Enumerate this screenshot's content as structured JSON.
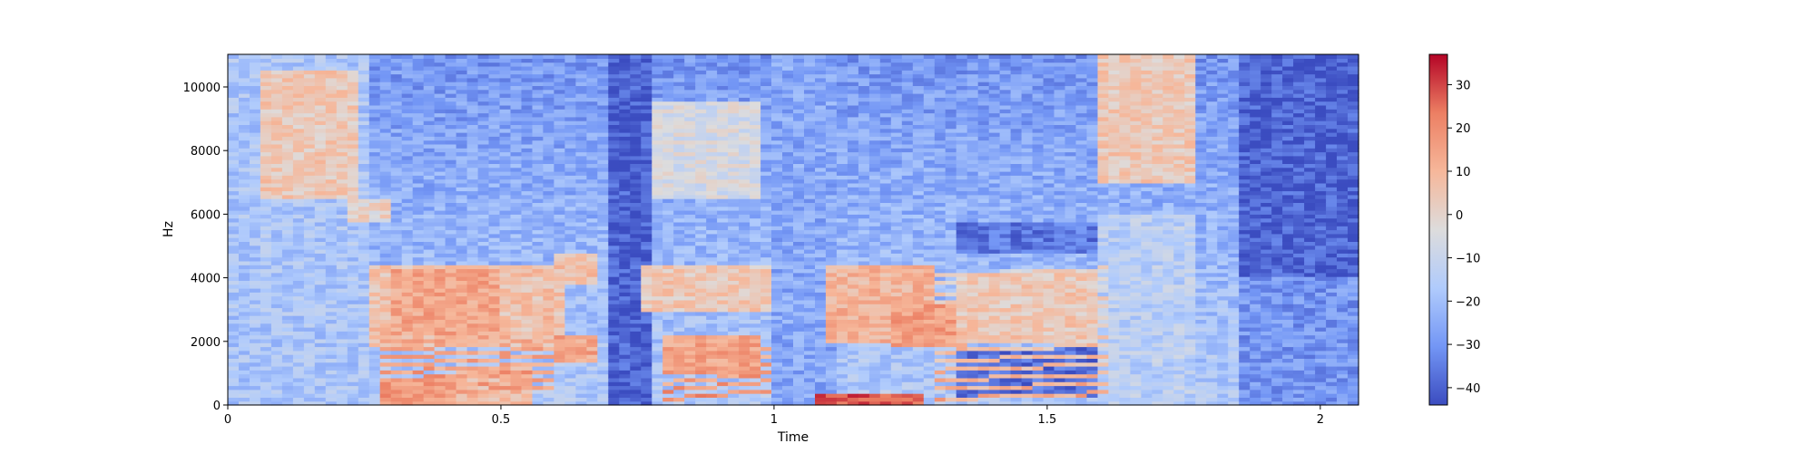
{
  "chart_data": {
    "type": "heatmap",
    "title": "",
    "xlabel": "Time",
    "ylabel": "Hz",
    "xlim": [
      0,
      2.07
    ],
    "ylim": [
      0,
      11025
    ],
    "x_ticks": [
      0,
      0.5,
      1,
      1.5,
      2
    ],
    "x_tick_labels": [
      "0",
      "0.5",
      "1",
      "1.5",
      "2"
    ],
    "y_ticks": [
      0,
      2000,
      4000,
      6000,
      8000,
      10000
    ],
    "y_tick_labels": [
      "0",
      "2000",
      "4000",
      "6000",
      "8000",
      "10000"
    ],
    "colormap": "coolwarm",
    "colormap_colors": [
      "#3b4cc0",
      "#7396f5",
      "#b0cbfc",
      "#dddcdc",
      "#f6b79a",
      "#ec7f63",
      "#b40426"
    ],
    "value_range": [
      -44,
      37
    ],
    "colorbar_ticks": [
      30,
      20,
      10,
      0,
      -10,
      -20,
      -30,
      -40
    ],
    "colorbar_tick_labels": [
      "30",
      "20",
      "10",
      "0",
      "−10",
      "−20",
      "−30",
      "−40"
    ],
    "energy_regions": [
      {
        "t0": 0.0,
        "t1": 0.25,
        "f0": 0,
        "f1": 11000,
        "level": -18
      },
      {
        "t0": 0.05,
        "t1": 0.24,
        "f0": 6500,
        "f1": 10500,
        "level": 4
      },
      {
        "t0": 0.22,
        "t1": 0.3,
        "f0": 5800,
        "f1": 6500,
        "level": 0
      },
      {
        "t0": 0.25,
        "t1": 0.62,
        "f0": 1800,
        "f1": 4400,
        "level": 6
      },
      {
        "t0": 0.3,
        "t1": 0.5,
        "f0": 2200,
        "f1": 4300,
        "level": 14
      },
      {
        "t0": 0.28,
        "t1": 0.42,
        "f0": 0,
        "f1": 900,
        "level": 16
      },
      {
        "t0": 0.42,
        "t1": 0.55,
        "f0": 0,
        "f1": 1200,
        "level": 8
      },
      {
        "t0": 0.6,
        "t1": 0.68,
        "f0": 1300,
        "f1": 2200,
        "level": 14
      },
      {
        "t0": 0.6,
        "t1": 0.68,
        "f0": 3800,
        "f1": 4800,
        "level": 6
      },
      {
        "t0": 0.7,
        "t1": 0.78,
        "f0": 0,
        "f1": 11000,
        "level": -40
      },
      {
        "t0": 0.8,
        "t1": 0.98,
        "f0": 1000,
        "f1": 2200,
        "level": 14
      },
      {
        "t0": 0.75,
        "t1": 1.0,
        "f0": 3000,
        "f1": 4400,
        "level": 4
      },
      {
        "t0": 0.78,
        "t1": 0.98,
        "f0": 6500,
        "f1": 9500,
        "level": -6
      },
      {
        "t0": 1.0,
        "t1": 1.12,
        "f0": 0,
        "f1": 11000,
        "level": -26
      },
      {
        "t0": 1.08,
        "t1": 1.28,
        "f0": 0,
        "f1": 400,
        "level": 28
      },
      {
        "t0": 1.1,
        "t1": 1.3,
        "f0": 2000,
        "f1": 4400,
        "level": 10
      },
      {
        "t0": 1.22,
        "t1": 1.36,
        "f0": 1800,
        "f1": 3200,
        "level": 16
      },
      {
        "t0": 1.33,
        "t1": 1.6,
        "f0": 200,
        "f1": 1800,
        "level": -38
      },
      {
        "t0": 1.33,
        "t1": 1.6,
        "f0": 2000,
        "f1": 4200,
        "level": 4
      },
      {
        "t0": 1.33,
        "t1": 1.62,
        "f0": 4800,
        "f1": 5800,
        "level": -36
      },
      {
        "t0": 1.6,
        "t1": 1.78,
        "f0": 7000,
        "f1": 11000,
        "level": 4
      },
      {
        "t0": 1.6,
        "t1": 1.78,
        "f0": 0,
        "f1": 6000,
        "level": -14
      },
      {
        "t0": 1.85,
        "t1": 2.07,
        "f0": 4000,
        "f1": 11000,
        "level": -40
      },
      {
        "t0": 1.85,
        "t1": 2.07,
        "f0": 0,
        "f1": 4000,
        "level": -30
      }
    ],
    "harmonic_tracks": [
      {
        "t0": 0.28,
        "t1": 0.6,
        "f_start": 300,
        "f_end": 600,
        "spacing": 240,
        "count": 10,
        "level": 18
      },
      {
        "t0": 0.8,
        "t1": 1.0,
        "f_start": 200,
        "f_end": 500,
        "spacing": 260,
        "count": 6,
        "level": 18
      },
      {
        "t0": 1.3,
        "t1": 1.62,
        "f_start": 200,
        "f_end": 400,
        "spacing": 300,
        "count": 14,
        "level": 12
      }
    ],
    "grid": false,
    "colorbar_position": "right"
  }
}
